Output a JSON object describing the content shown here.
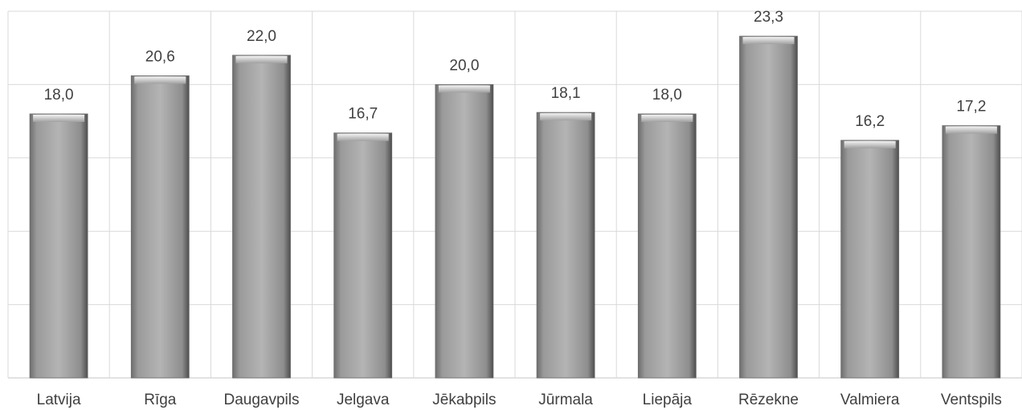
{
  "chart_data": {
    "type": "bar",
    "title": "",
    "xlabel": "",
    "ylabel": "",
    "categories": [
      "Latvija",
      "Rīga",
      "Daugavpils",
      "Jelgava",
      "Jēkabpils",
      "Jūrmala",
      "Liepāja",
      "Rēzekne",
      "Valmiera",
      "Ventspils"
    ],
    "values": [
      18.0,
      20.6,
      22.0,
      16.7,
      20.0,
      18.1,
      18.0,
      23.3,
      16.2,
      17.2
    ],
    "value_labels": [
      "18,0",
      "20,6",
      "22,0",
      "16,7",
      "20,0",
      "18,1",
      "18,0",
      "23,3",
      "16,2",
      "17,2"
    ],
    "ylim": [
      0,
      25
    ],
    "y_gridlines": [
      0,
      5,
      10,
      15,
      20,
      25
    ],
    "y_tick_labels_shown": false,
    "grid": true,
    "bar_color": "#a6a6a6"
  }
}
